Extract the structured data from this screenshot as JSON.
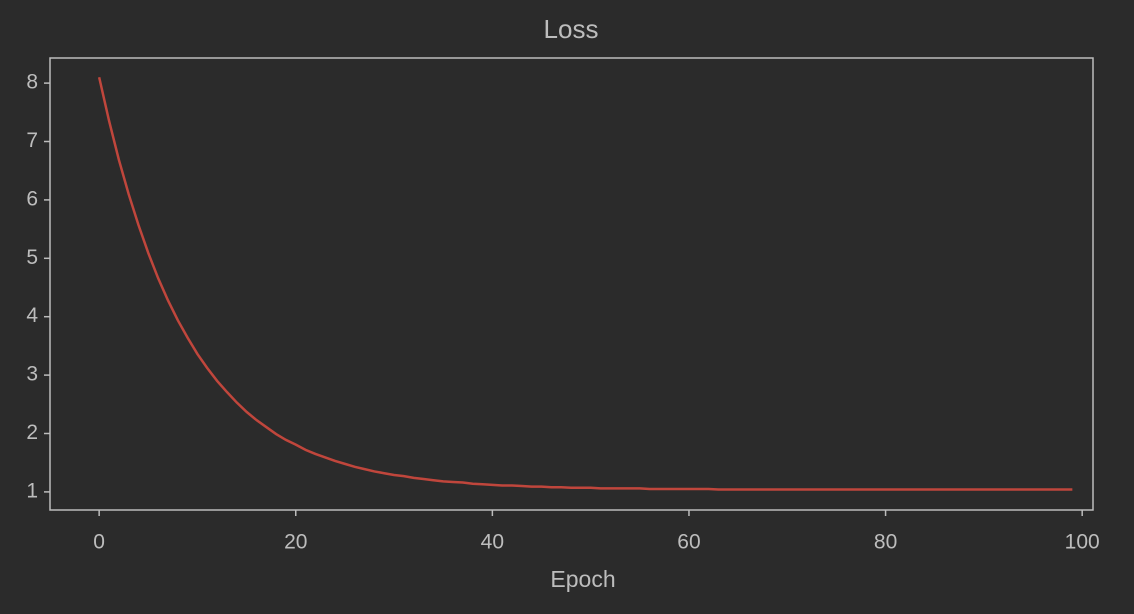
{
  "chart_data": {
    "type": "line",
    "title": "Loss",
    "x_label": "Epoch",
    "x": [
      0,
      1,
      2,
      3,
      4,
      5,
      6,
      7,
      8,
      9,
      10,
      11,
      12,
      13,
      14,
      15,
      16,
      17,
      18,
      19,
      20,
      21,
      22,
      23,
      24,
      25,
      26,
      27,
      28,
      29,
      30,
      31,
      32,
      33,
      34,
      35,
      36,
      37,
      38,
      39,
      40,
      41,
      42,
      43,
      44,
      45,
      46,
      47,
      48,
      49,
      50,
      51,
      52,
      53,
      54,
      55,
      56,
      57,
      58,
      59,
      60,
      61,
      62,
      63,
      64,
      65,
      66,
      67,
      68,
      69,
      70,
      71,
      72,
      73,
      74,
      75,
      76,
      77,
      78,
      79,
      80,
      81,
      82,
      83,
      84,
      85,
      86,
      87,
      88,
      89,
      90,
      91,
      92,
      93,
      94,
      95,
      96,
      97,
      98,
      99
    ],
    "values": [
      8.1,
      7.36,
      6.69,
      6.1,
      5.57,
      5.09,
      4.66,
      4.28,
      3.94,
      3.64,
      3.36,
      3.12,
      2.9,
      2.71,
      2.53,
      2.37,
      2.23,
      2.11,
      1.99,
      1.89,
      1.81,
      1.72,
      1.65,
      1.59,
      1.53,
      1.48,
      1.43,
      1.39,
      1.35,
      1.32,
      1.29,
      1.27,
      1.24,
      1.22,
      1.2,
      1.18,
      1.17,
      1.16,
      1.14,
      1.13,
      1.12,
      1.11,
      1.11,
      1.1,
      1.09,
      1.09,
      1.08,
      1.08,
      1.07,
      1.07,
      1.07,
      1.06,
      1.06,
      1.06,
      1.06,
      1.06,
      1.05,
      1.05,
      1.05,
      1.05,
      1.05,
      1.05,
      1.05,
      1.04,
      1.04,
      1.04,
      1.04,
      1.04,
      1.04,
      1.04,
      1.04,
      1.04,
      1.04,
      1.04,
      1.04,
      1.04,
      1.04,
      1.04,
      1.04,
      1.04,
      1.04,
      1.04,
      1.04,
      1.04,
      1.04,
      1.04,
      1.04,
      1.04,
      1.04,
      1.04,
      1.04,
      1.04,
      1.04,
      1.04,
      1.04,
      1.04,
      1.04,
      1.04,
      1.04,
      1.04
    ],
    "color": "#c0463c",
    "xlim": [
      -5,
      101.1
    ],
    "xticks": [
      0,
      20,
      40,
      60,
      80,
      100
    ],
    "ylim": [
      0.69,
      8.43
    ],
    "yticks": [
      1,
      2,
      3,
      4,
      5,
      6,
      7,
      8
    ],
    "grid": false
  }
}
